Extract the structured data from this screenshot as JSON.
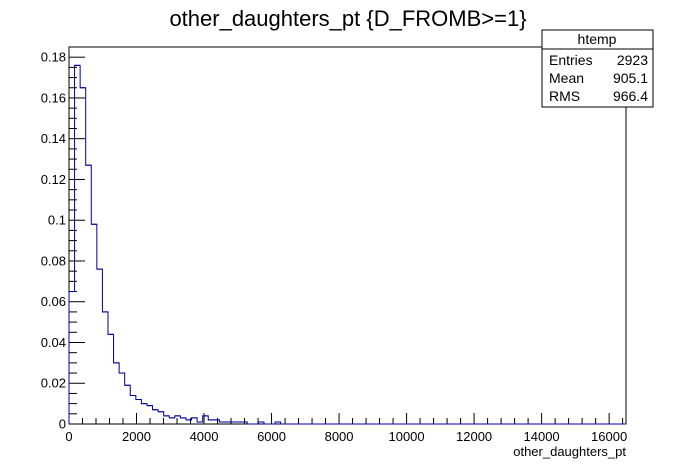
{
  "chart_data": {
    "type": "bar",
    "title": "other_daughters_pt {D_FROMB>=1}",
    "xlabel": "other_daughters_pt",
    "ylabel": "",
    "xlim": [
      0,
      16500
    ],
    "ylim": [
      0,
      0.185
    ],
    "bin_width": 165,
    "x_ticks": [
      0,
      2000,
      4000,
      6000,
      8000,
      10000,
      12000,
      14000,
      16000
    ],
    "x_tick_labels": [
      "0",
      "2000",
      "4000",
      "6000",
      "8000",
      "10000",
      "12000",
      "14000",
      "16000"
    ],
    "y_ticks": [
      0,
      0.02,
      0.04,
      0.06,
      0.08,
      0.1,
      0.12,
      0.14,
      0.16,
      0.18
    ],
    "y_tick_labels": [
      "0",
      "0.02",
      "0.04",
      "0.06",
      "0.08",
      "0.1",
      "0.12",
      "0.14",
      "0.16",
      "0.18"
    ],
    "values": [
      0.065,
      0.176,
      0.165,
      0.127,
      0.098,
      0.076,
      0.055,
      0.044,
      0.03,
      0.025,
      0.019,
      0.014,
      0.012,
      0.01,
      0.009,
      0.007,
      0.006,
      0.004,
      0.003,
      0.004,
      0.003,
      0.002,
      0.003,
      0.001,
      0.004,
      0.002,
      0.002,
      0.001,
      0.001,
      0.001,
      0.001,
      0.001,
      0.0,
      0.0,
      0.001,
      0.0,
      0.0,
      0.001,
      0.0,
      0.0,
      0.0,
      0.0,
      0.0,
      0.0,
      0.0,
      0.0,
      0.0,
      0.0,
      0.0,
      0.0,
      0.0,
      0.0,
      0.0,
      0.0,
      0.0,
      0.0,
      0.0,
      0.0,
      0.0,
      0.0,
      0.0,
      0.0,
      0.0,
      0.0,
      0.0,
      0.0,
      0.0,
      0.0,
      0.0,
      0.0,
      0.0,
      0.0,
      0.0,
      0.0,
      0.0,
      0.0,
      0.0,
      0.0,
      0.0,
      0.0,
      0.0,
      0.0,
      0.0,
      0.0,
      0.0,
      0.0,
      0.0,
      0.0,
      0.0,
      0.0,
      0.0,
      0.0,
      0.0,
      0.0,
      0.0,
      0.0,
      0.0,
      0.0,
      0.0,
      0.0
    ],
    "grid": false,
    "line_color": "#000099",
    "stats_box": {
      "name": "htemp",
      "rows": [
        {
          "label": "Entries",
          "value": "2923"
        },
        {
          "label": "Mean",
          "value": "905.1"
        },
        {
          "label": "RMS",
          "value": "966.4"
        }
      ]
    }
  }
}
